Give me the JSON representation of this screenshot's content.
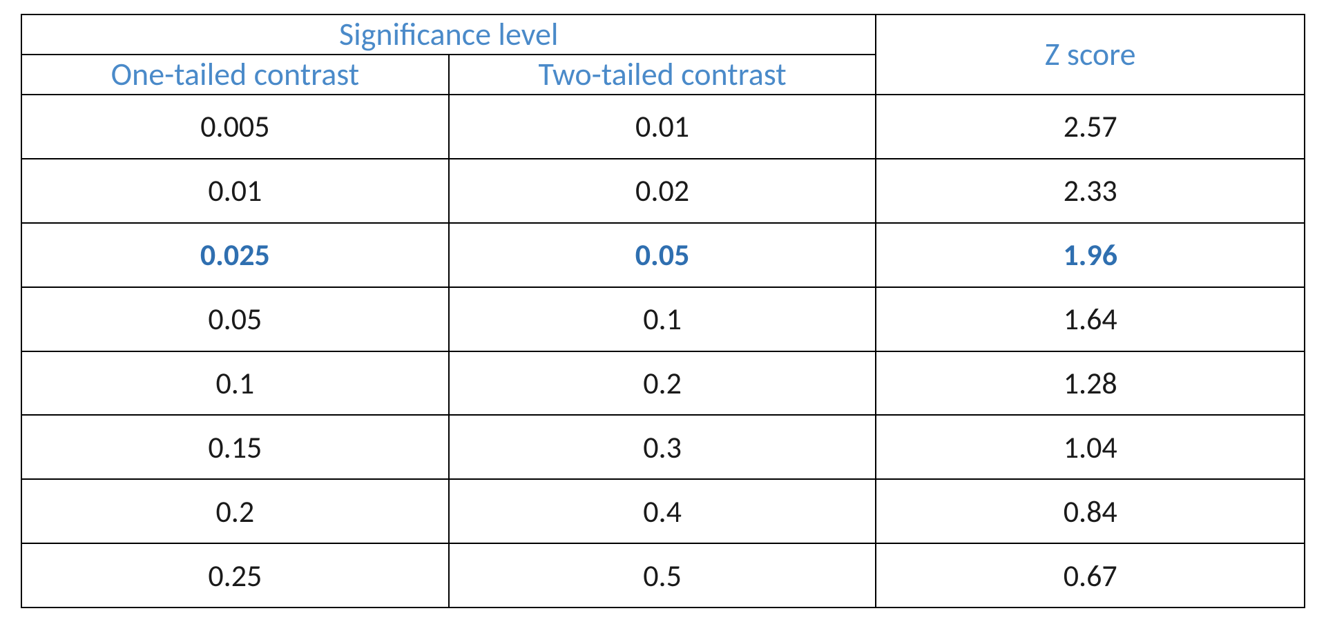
{
  "table": {
    "type": "table",
    "header_text_color": "#4a8ac9",
    "body_text_color": "#1a1a1a",
    "highlight_text_color": "#2f6fb0",
    "border_color": "#000000",
    "background_color": "#ffffff",
    "header_fontsize_pt": 34,
    "body_fontsize_pt": 33,
    "font_family": "Calibri",
    "columns": [
      "one_tailed",
      "two_tailed",
      "z_score"
    ],
    "column_widths_pct": [
      33.3,
      33.3,
      33.4
    ],
    "headers": {
      "group": "Significance level",
      "col1": "One-tailed contrast",
      "col2": "Two-tailed contrast",
      "col3": "Z score"
    },
    "highlight_row_index": 2,
    "rows": [
      {
        "one_tailed": "0.005",
        "two_tailed": "0.01",
        "z_score": "2.57"
      },
      {
        "one_tailed": "0.01",
        "two_tailed": "0.02",
        "z_score": "2.33"
      },
      {
        "one_tailed": "0.025",
        "two_tailed": "0.05",
        "z_score": "1.96"
      },
      {
        "one_tailed": "0.05",
        "two_tailed": "0.1",
        "z_score": "1.64"
      },
      {
        "one_tailed": "0.1",
        "two_tailed": "0.2",
        "z_score": "1.28"
      },
      {
        "one_tailed": "0.15",
        "two_tailed": "0.3",
        "z_score": "1.04"
      },
      {
        "one_tailed": "0.2",
        "two_tailed": "0.4",
        "z_score": "0.84"
      },
      {
        "one_tailed": "0.25",
        "two_tailed": "0.5",
        "z_score": "0.67"
      }
    ]
  }
}
